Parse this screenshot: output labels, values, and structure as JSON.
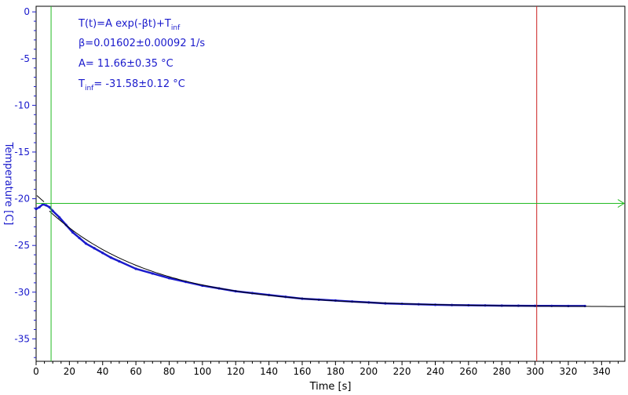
{
  "chart_data": {
    "type": "line",
    "xlabel": "Time [s]",
    "ylabel": "Temperature [C]",
    "xlim": [
      0,
      354
    ],
    "ylim": [
      -37.4,
      0.6
    ],
    "xticks": [
      0,
      20,
      40,
      60,
      80,
      100,
      120,
      140,
      160,
      180,
      200,
      220,
      240,
      260,
      280,
      300,
      320,
      340
    ],
    "yticks": [
      0,
      -5,
      -10,
      -15,
      -20,
      -25,
      -30,
      -35
    ],
    "grid": false,
    "annotations": {
      "line1": {
        "text": "T(t)=A exp(-βt)+T",
        "sub": "inf"
      },
      "line2": {
        "text": "β=0.01602±0.00092 1/s"
      },
      "line3": {
        "text": "A= 11.66±0.35 °C"
      },
      "line4": {
        "pre": "T",
        "sub": "inf",
        "text": "= -31.58±0.12 °C"
      }
    },
    "fit": {
      "A": 11.66,
      "beta": 0.01602,
      "T_inf": -31.58,
      "x_start": 0,
      "x_end": 354
    },
    "cursors": {
      "vertical_left_x": 9,
      "vertical_right_x": 301,
      "horizontal_y": -20.5
    },
    "series": [
      {
        "name": "Temperature",
        "color": "#1a1acc",
        "x": [
          0,
          2,
          4,
          6,
          8,
          10,
          14,
          18,
          22,
          26,
          30,
          35,
          40,
          45,
          50,
          60,
          70,
          80,
          90,
          100,
          110,
          120,
          130,
          140,
          150,
          160,
          170,
          180,
          190,
          200,
          210,
          220,
          230,
          240,
          250,
          260,
          270,
          280,
          290,
          300,
          310,
          320,
          330
        ],
        "y": [
          -21.1,
          -20.9,
          -20.6,
          -20.7,
          -20.9,
          -21.3,
          -22.0,
          -22.8,
          -23.6,
          -24.2,
          -24.8,
          -25.3,
          -25.8,
          -26.3,
          -26.7,
          -27.5,
          -28.0,
          -28.5,
          -28.9,
          -29.3,
          -29.6,
          -29.9,
          -30.1,
          -30.3,
          -30.5,
          -30.7,
          -30.8,
          -30.9,
          -31.0,
          -31.1,
          -31.2,
          -31.25,
          -31.3,
          -31.35,
          -31.38,
          -31.4,
          -31.42,
          -31.44,
          -31.45,
          -31.46,
          -31.47,
          -31.48,
          -31.48
        ]
      }
    ],
    "colors": {
      "axis": "#1a1acc",
      "frame": "#000000",
      "cursor_green": "#22bb22",
      "cursor_red": "#cc2222",
      "fit": "#000000"
    }
  }
}
